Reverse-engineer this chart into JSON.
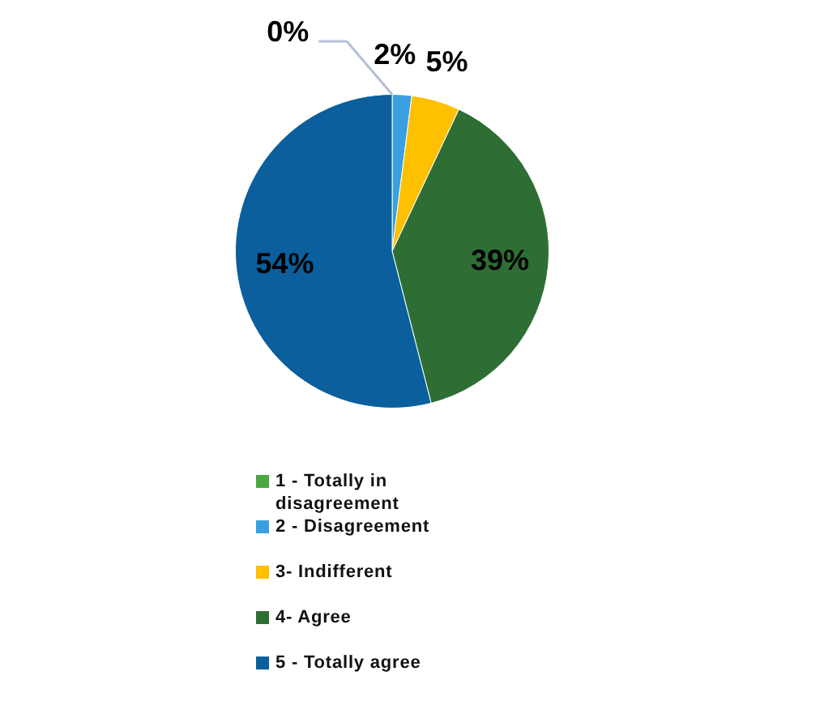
{
  "chart_data": {
    "type": "pie",
    "categories": [
      "1 - Totally in disagreement",
      "2 - Disagreement",
      "3- Indifferent",
      "4- Agree",
      "5 - Totally agree"
    ],
    "values": [
      0,
      2,
      5,
      39,
      54
    ],
    "value_labels": [
      "0%",
      "2%",
      "5%",
      "39%",
      "54%"
    ],
    "colors": [
      "#4aa83f",
      "#3a9fe0",
      "#ffc000",
      "#2e6e34",
      "#0a5f9c"
    ],
    "legend": "bottom"
  }
}
